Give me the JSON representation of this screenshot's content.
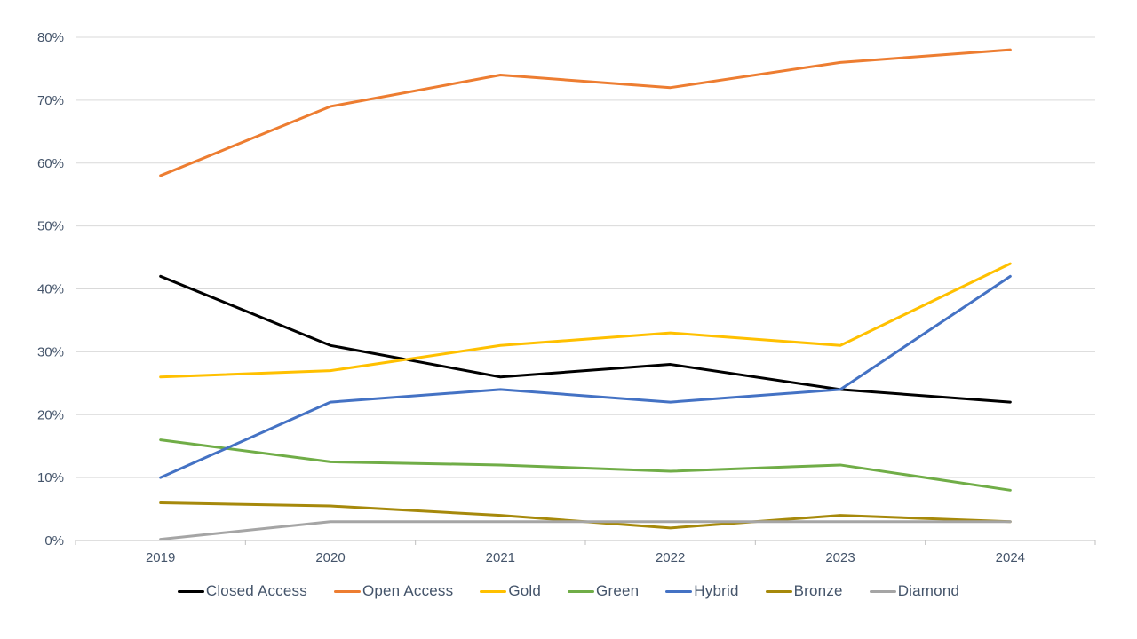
{
  "chart_data": {
    "type": "line",
    "x": [
      "2019",
      "2020",
      "2021",
      "2022",
      "2023",
      "2024"
    ],
    "series": [
      {
        "name": "Closed Access",
        "color": "#000000",
        "values": [
          42,
          31,
          26,
          28,
          24,
          22
        ]
      },
      {
        "name": "Open Access",
        "color": "#ED7D31",
        "values": [
          58,
          69,
          74,
          72,
          76,
          78
        ]
      },
      {
        "name": "Gold",
        "color": "#FFC000",
        "values": [
          26,
          27,
          31,
          33,
          31,
          44
        ]
      },
      {
        "name": "Green",
        "color": "#70AD47",
        "values": [
          16,
          12.5,
          12,
          11,
          12,
          8
        ]
      },
      {
        "name": "Hybrid",
        "color": "#4472C4",
        "values": [
          10,
          22,
          24,
          22,
          24,
          42
        ]
      },
      {
        "name": "Bronze",
        "color": "#A6890B",
        "values": [
          6,
          5.5,
          4,
          2,
          4,
          3
        ]
      },
      {
        "name": "Diamond",
        "color": "#A5A5A5",
        "values": [
          0.2,
          3,
          3,
          3,
          3,
          3
        ]
      }
    ],
    "title": "",
    "xlabel": "",
    "ylabel": "",
    "ylim": [
      0,
      80
    ],
    "ytick_step": 10,
    "ytick_labels": [
      "0%",
      "10%",
      "20%",
      "30%",
      "40%",
      "50%",
      "60%",
      "70%",
      "80%"
    ],
    "grid": true,
    "legend_position": "bottom",
    "colors": {
      "axis_text": "#44546A",
      "legend_text": "#44546A",
      "gridline": "#D9D9D9",
      "axis_line": "#BFBFBF"
    }
  }
}
